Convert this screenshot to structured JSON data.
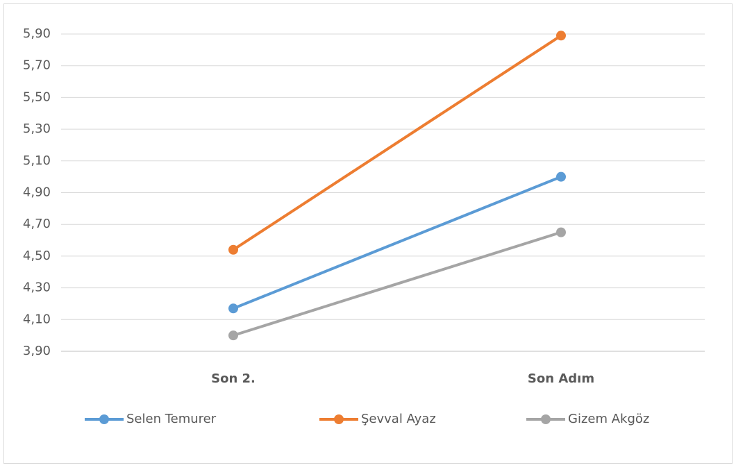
{
  "chart_data": {
    "type": "line",
    "categories": [
      "Son 2.",
      "Son Adım"
    ],
    "series": [
      {
        "name": "Selen Temurer",
        "color": "#5b9bd5",
        "values": [
          4.17,
          5.0
        ]
      },
      {
        "name": "Şevval Ayaz",
        "color": "#ed7d31",
        "values": [
          4.54,
          5.89
        ]
      },
      {
        "name": "Gizem Akgöz",
        "color": "#a5a5a5",
        "values": [
          4.0,
          4.65
        ]
      }
    ],
    "ylim": [
      3.9,
      5.9
    ],
    "yticks": [
      {
        "value": 3.9,
        "label": "3,90"
      },
      {
        "value": 4.1,
        "label": "4,10"
      },
      {
        "value": 4.3,
        "label": "4,30"
      },
      {
        "value": 4.5,
        "label": "4,50"
      },
      {
        "value": 4.7,
        "label": "4,70"
      },
      {
        "value": 4.9,
        "label": "4,90"
      },
      {
        "value": 5.1,
        "label": "5,10"
      },
      {
        "value": 5.3,
        "label": "5,30"
      },
      {
        "value": 5.5,
        "label": "5,50"
      },
      {
        "value": 5.7,
        "label": "5,70"
      },
      {
        "value": 5.9,
        "label": "5,90"
      }
    ],
    "grid": true,
    "legend": "bottom"
  }
}
